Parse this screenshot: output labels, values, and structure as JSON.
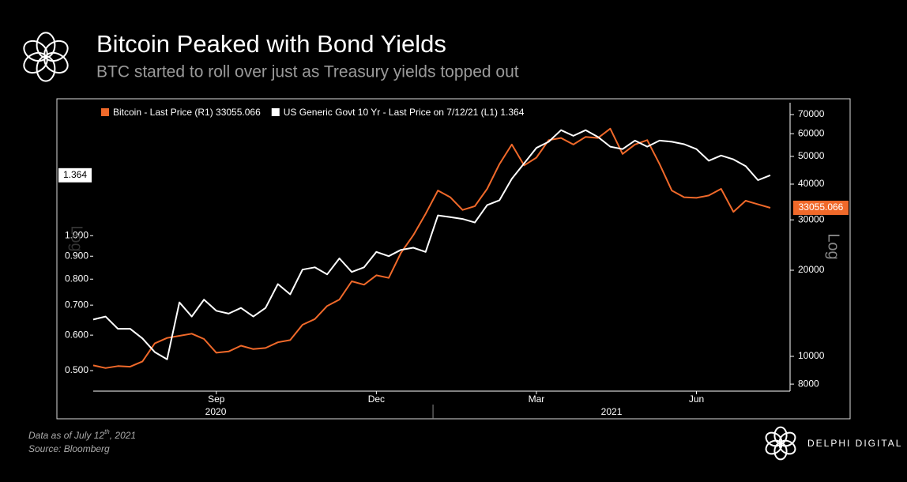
{
  "header": {
    "title": "Bitcoin Peaked with Bond Yields",
    "subtitle": "BTC started to roll over just as Treasury yields topped out"
  },
  "chart_data": {
    "type": "line",
    "log_scale": true,
    "categories": [
      null,
      null,
      null,
      null,
      null,
      null,
      null,
      null,
      null,
      null,
      "Sep",
      null,
      null,
      null,
      null,
      null,
      null,
      null,
      null,
      null,
      null,
      null,
      null,
      "Dec",
      null,
      null,
      null,
      null,
      null,
      null,
      null,
      null,
      null,
      null,
      null,
      null,
      "Mar",
      null,
      null,
      null,
      null,
      null,
      null,
      null,
      null,
      null,
      null,
      null,
      null,
      "Jun",
      null,
      null,
      null,
      null,
      null,
      null
    ],
    "x_groups": [
      "2020",
      "2021"
    ],
    "series": [
      {
        "name": "Bitcoin - Last Price (R1) 33055.066",
        "color": "#f0692a",
        "axis": "y2",
        "values": [
          9300,
          9100,
          9250,
          9200,
          9600,
          11100,
          11600,
          11800,
          12000,
          11500,
          10300,
          10400,
          10900,
          10600,
          10700,
          11200,
          11400,
          12900,
          13500,
          15000,
          15800,
          18300,
          17800,
          19200,
          18800,
          23000,
          26500,
          31500,
          38000,
          36000,
          32500,
          33500,
          38500,
          47000,
          55000,
          46500,
          49500,
          57000,
          58000,
          55000,
          58500,
          58000,
          62500,
          51000,
          55000,
          57000,
          47000,
          38000,
          36000,
          35800,
          36500,
          38500,
          32000,
          35000,
          34000,
          33055.066
        ]
      },
      {
        "name": "US Generic Govt 10 Yr - Last Price on 7/12/21 (L1) 1.364",
        "color": "#ffffff",
        "axis": "y",
        "values": [
          0.65,
          0.66,
          0.62,
          0.62,
          0.59,
          0.55,
          0.53,
          0.71,
          0.66,
          0.72,
          0.68,
          0.67,
          0.69,
          0.66,
          0.69,
          0.78,
          0.74,
          0.84,
          0.85,
          0.82,
          0.89,
          0.83,
          0.85,
          0.92,
          0.9,
          0.93,
          0.94,
          0.92,
          1.11,
          1.1,
          1.09,
          1.07,
          1.17,
          1.2,
          1.34,
          1.45,
          1.57,
          1.62,
          1.72,
          1.67,
          1.72,
          1.66,
          1.58,
          1.56,
          1.63,
          1.58,
          1.63,
          1.62,
          1.6,
          1.56,
          1.47,
          1.51,
          1.48,
          1.43,
          1.33,
          1.364
        ]
      }
    ],
    "ylim": [
      0.45,
      1.98
    ],
    "yticks": [
      {
        "value": 0.5,
        "label": "0.500"
      },
      {
        "value": 0.6,
        "label": "0.600"
      },
      {
        "value": 0.7,
        "label": "0.700"
      },
      {
        "value": 0.8,
        "label": "0.800"
      },
      {
        "value": 0.9,
        "label": "0.900"
      },
      {
        "value": 1,
        "label": "1.000"
      }
    ],
    "y2lim": [
      7560,
      77000
    ],
    "y2ticks": [
      8000,
      10000,
      20000,
      30000,
      40000,
      50000,
      60000,
      70000
    ],
    "y_label": "Log",
    "y2_label": "Log"
  },
  "footer": {
    "note": {
      "before": "Data as of July 12",
      "sup": "th",
      "after": ", 2021"
    },
    "source": "Source:  Bloomberg",
    "brand": "DELPHI DIGITAL"
  }
}
